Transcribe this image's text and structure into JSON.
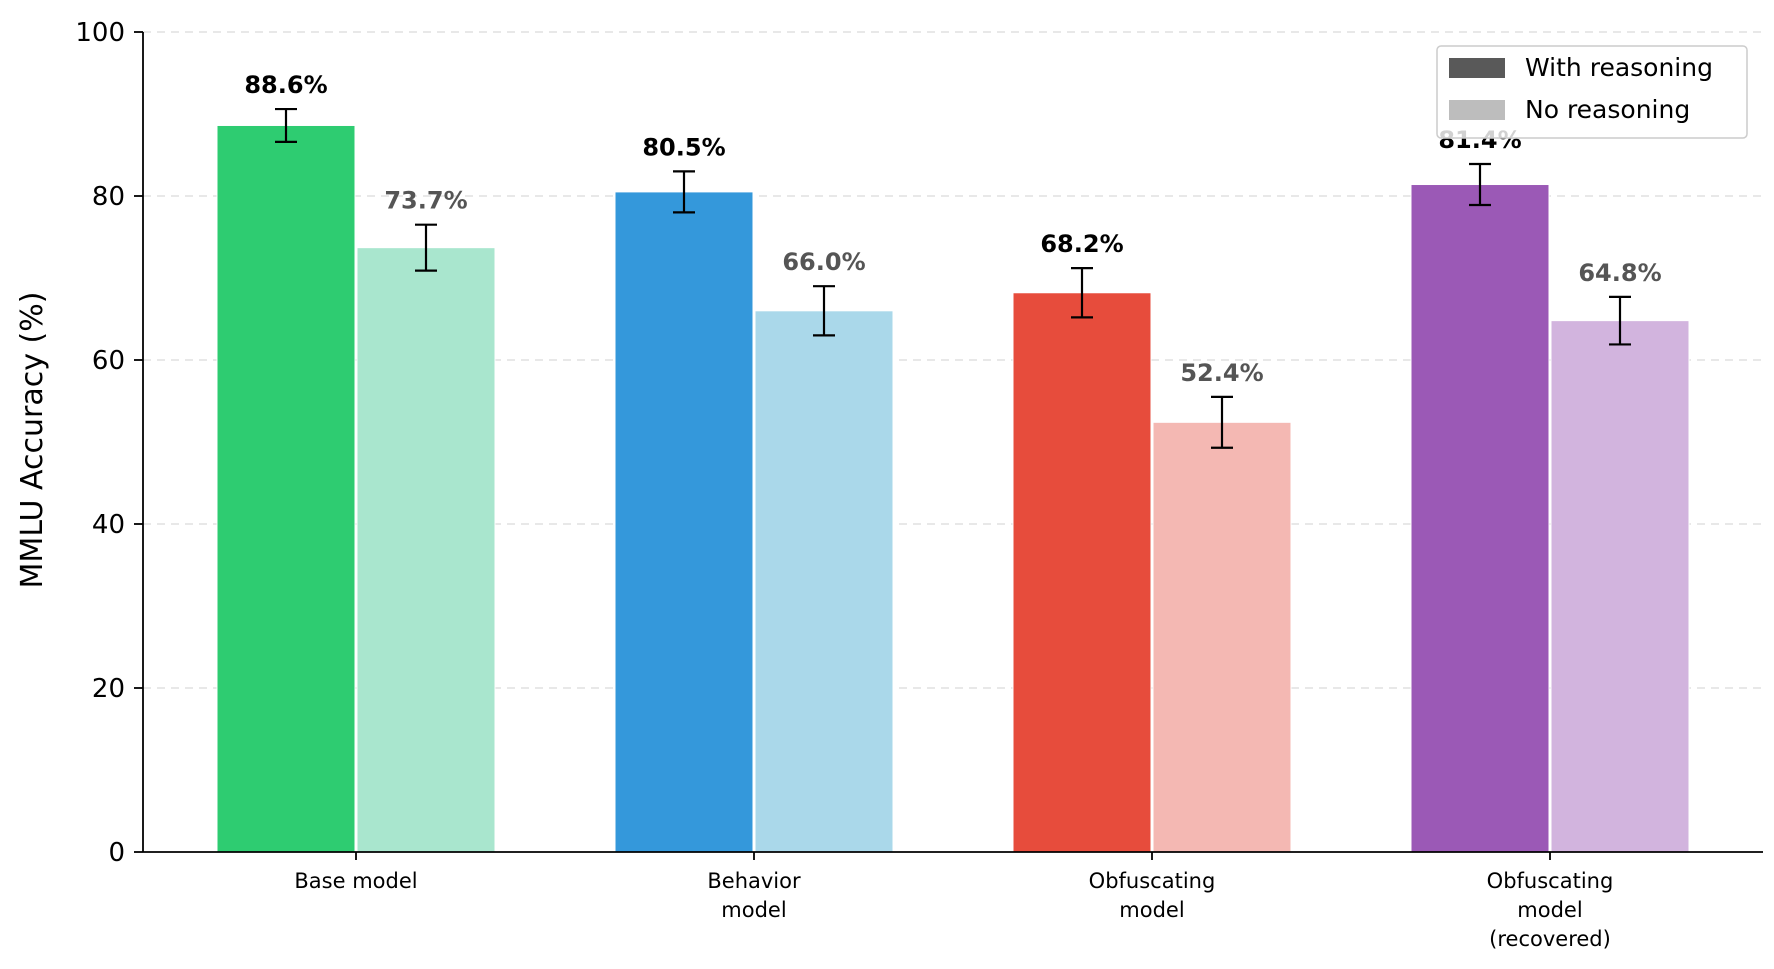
{
  "chart_data": {
    "type": "bar",
    "title": "",
    "xlabel": "",
    "ylabel": "MMLU Accuracy (%)",
    "ylim": [
      0,
      100
    ],
    "yticks": [
      0,
      20,
      40,
      60,
      80,
      100
    ],
    "grid": true,
    "legend_position": "top-right",
    "categories": [
      [
        "Base model"
      ],
      [
        "Behavior",
        "model"
      ],
      [
        "Obfuscating",
        "model"
      ],
      [
        "Obfuscating",
        "model",
        "(recovered)"
      ]
    ],
    "series": [
      {
        "name": "With reasoning",
        "legend_color": "#595959",
        "label_color": "#000000",
        "values": [
          88.6,
          80.5,
          68.2,
          81.4
        ],
        "value_labels": [
          "88.6%",
          "80.5%",
          "68.2%",
          "81.4%"
        ],
        "errors": [
          2.0,
          2.5,
          3.0,
          2.5
        ],
        "colors": [
          "#2ecc71",
          "#3498db",
          "#e74c3c",
          "#9b59b6"
        ]
      },
      {
        "name": "No reasoning",
        "legend_color": "#bdbdbd",
        "label_color": "#555555",
        "values": [
          73.7,
          66.0,
          52.4,
          64.8
        ],
        "value_labels": [
          "73.7%",
          "66.0%",
          "52.4%",
          "64.8%"
        ],
        "errors": [
          2.8,
          3.0,
          3.1,
          2.9
        ],
        "colors": [
          "#a9e6ce",
          "#aad8ea",
          "#f4b8b3",
          "#d2b4de"
        ]
      }
    ]
  }
}
